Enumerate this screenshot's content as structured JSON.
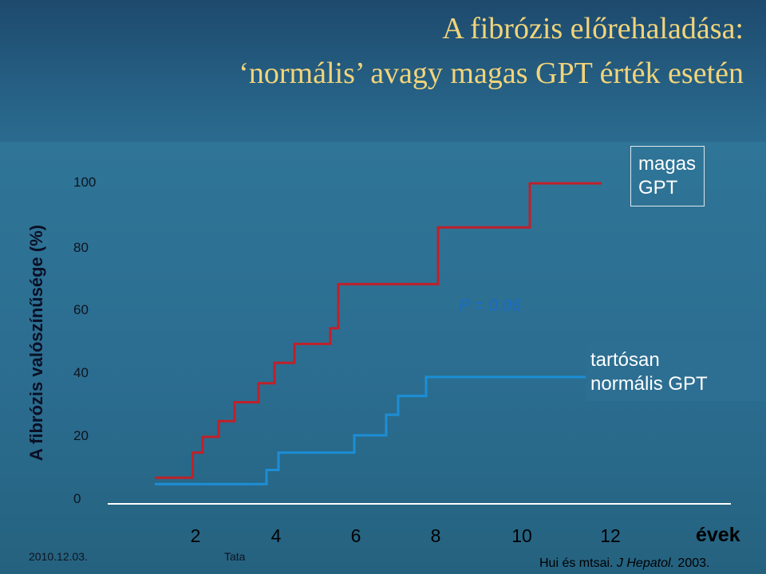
{
  "title": {
    "line1": "A fibrózis előrehaladása:",
    "line2": "‘normális’ avagy magas GPT érték esetén"
  },
  "chart_data": {
    "type": "line",
    "step": true,
    "ylabel": "A fibrózis valószínűsége (%)",
    "xlabel": "évek",
    "xlim": [
      0,
      15.3
    ],
    "ylim": [
      0,
      100
    ],
    "x_ticks": [
      "2",
      "4",
      "6",
      "8",
      "10",
      "12"
    ],
    "y_ticks": [
      "0",
      "20",
      "40",
      "60",
      "80",
      "100"
    ],
    "series": [
      {
        "name": "magas GPT",
        "color": "#c0202a",
        "x": [
          1.0,
          1.75,
          1.95,
          2.2,
          2.6,
          3.0,
          3.6,
          4.0,
          4.5,
          5.4,
          5.6,
          6.7,
          8.1,
          10.4,
          12.2
        ],
        "y": [
          6.5,
          6.5,
          14.5,
          19.5,
          24.5,
          30.5,
          36.5,
          43.0,
          49.0,
          54.0,
          68.0,
          68.0,
          86.0,
          100.0,
          100.0
        ]
      },
      {
        "name": "tartósan normális GPT",
        "color": "#1c8ed6",
        "x": [
          1.0,
          1.8,
          3.8,
          4.1,
          6.0,
          6.8,
          7.1,
          7.8,
          11.9
        ],
        "y": [
          4.5,
          4.5,
          9.0,
          14.5,
          20.0,
          26.5,
          32.5,
          38.5,
          45.0
        ]
      }
    ],
    "annotations": [
      "P = 0.06"
    ]
  },
  "legend": {
    "high_line1": "magas",
    "high_line2": "GPT",
    "normal_line1": "tartósan",
    "normal_line2": "normális GPT"
  },
  "pvalue": "P = 0.06",
  "footer": {
    "date": "2010.12.03.",
    "place": "Tata"
  },
  "citation": {
    "authors": "Hui és mtsai. ",
    "journal": "J Hepatol.",
    "year": " 2003."
  }
}
